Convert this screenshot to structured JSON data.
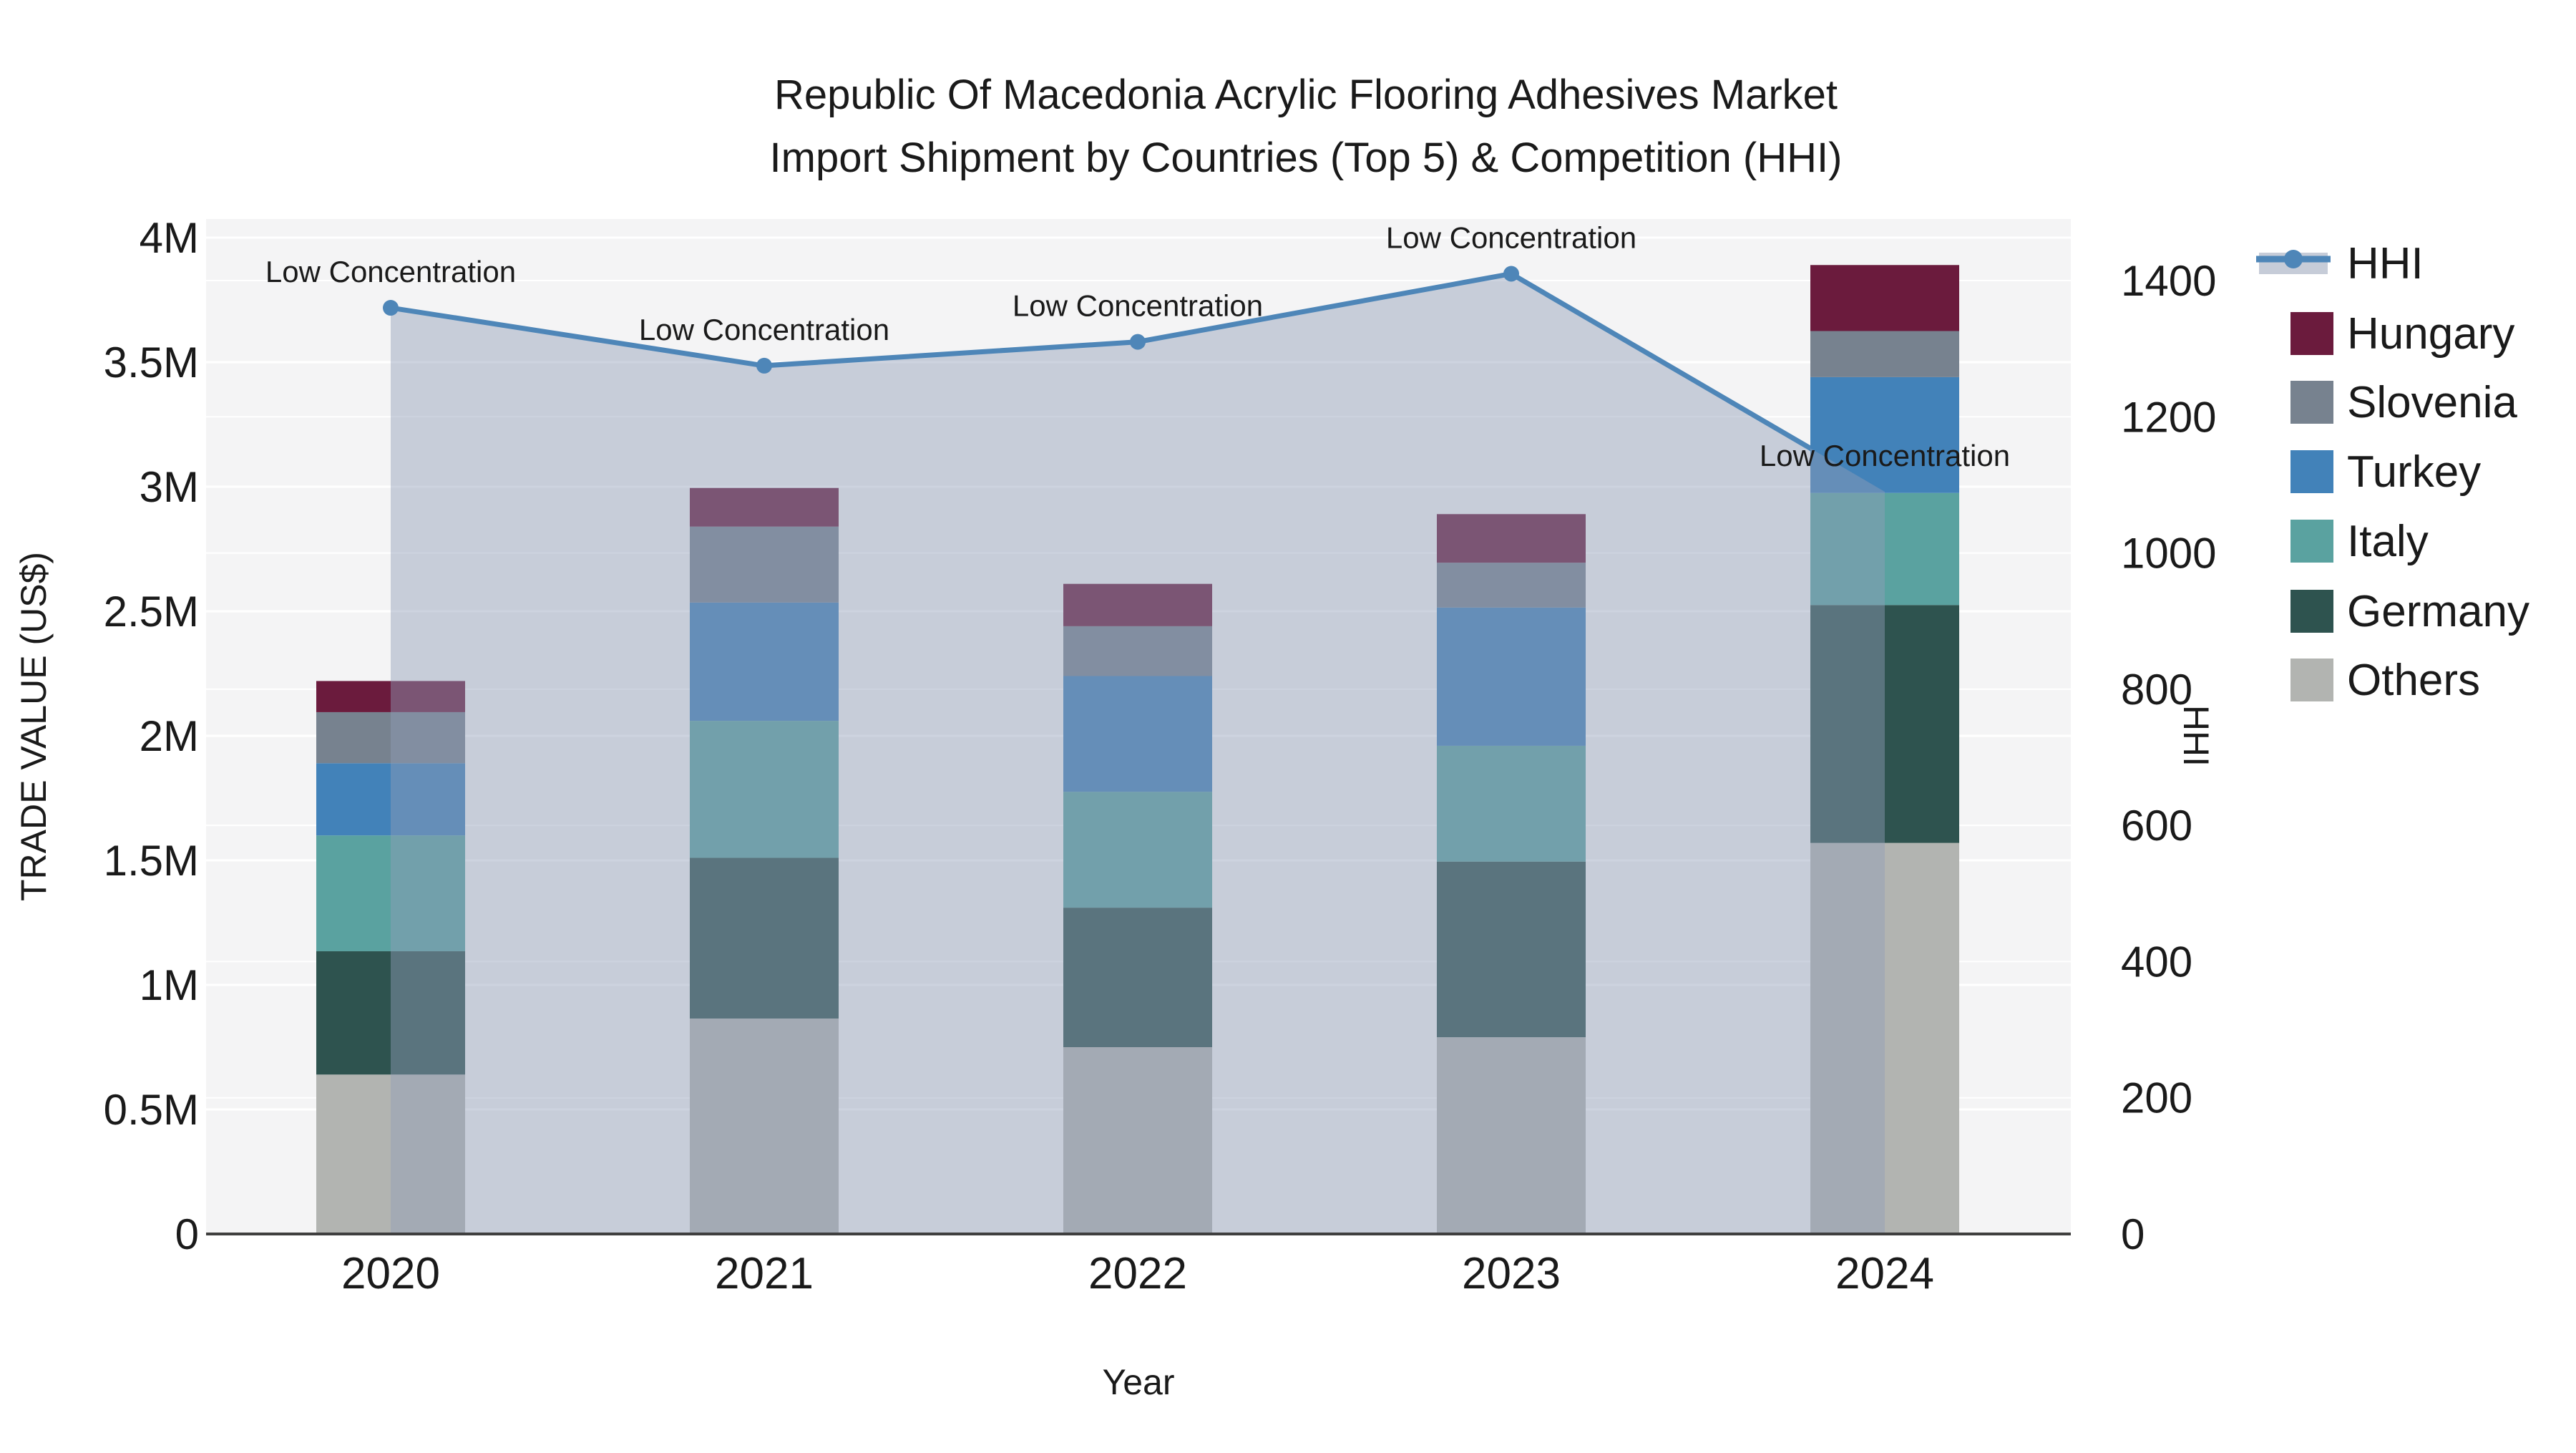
{
  "title": {
    "line1": "Republic Of Macedonia Acrylic Flooring Adhesives Market",
    "line2": "Import Shipment by Countries (Top 5) & Competition (HHI)"
  },
  "axis_titles": {
    "y_left": "TRADE VALUE (US$)",
    "y_right": "HHI",
    "x": "Year"
  },
  "y_left_ticks": [
    "0",
    "0.5M",
    "1M",
    "1.5M",
    "2M",
    "2.5M",
    "3M",
    "3.5M",
    "4M"
  ],
  "y_right_ticks": [
    "0",
    "200",
    "400",
    "600",
    "800",
    "1000",
    "1200",
    "1400"
  ],
  "legend": [
    {
      "label": "HHI",
      "type": "line",
      "color": "#4E86B8",
      "band": "#C6CCD8"
    },
    {
      "label": "Hungary",
      "type": "swatch",
      "color": "#6B1B3D"
    },
    {
      "label": "Slovenia",
      "type": "swatch",
      "color": "#77828F"
    },
    {
      "label": "Turkey",
      "type": "swatch",
      "color": "#4282B9"
    },
    {
      "label": "Italy",
      "type": "swatch",
      "color": "#5AA2A0"
    },
    {
      "label": "Germany",
      "type": "swatch",
      "color": "#2E534F"
    },
    {
      "label": "Others",
      "type": "swatch",
      "color": "#B2B4B1"
    }
  ],
  "chart_data": {
    "type": [
      "bar",
      "line"
    ],
    "bar_mode": "stacked",
    "title": "Republic Of Macedonia Acrylic Flooring Adhesives Market Import Shipment by Countries (Top 5) & Competition (HHI)",
    "xlabel": "Year",
    "categories": [
      "2020",
      "2021",
      "2022",
      "2023",
      "2024"
    ],
    "bar_axis": {
      "label": "TRADE VALUE (US$)",
      "range": [
        0,
        4000000
      ],
      "tick_step": 500000
    },
    "line_axis": {
      "label": "HHI",
      "range": [
        0,
        1400
      ],
      "tick_step": 200
    },
    "bar_series": [
      {
        "name": "Others",
        "color": "#B2B4B1",
        "values": [
          640000,
          865000,
          750000,
          790000,
          1570000
        ]
      },
      {
        "name": "Germany",
        "color": "#2E534F",
        "values": [
          495000,
          645000,
          560000,
          705000,
          955000
        ]
      },
      {
        "name": "Italy",
        "color": "#5AA2A0",
        "values": [
          465000,
          550000,
          465000,
          465000,
          450000
        ]
      },
      {
        "name": "Turkey",
        "color": "#4282B9",
        "values": [
          290000,
          475000,
          465000,
          555000,
          465000
        ]
      },
      {
        "name": "Slovenia",
        "color": "#77828F",
        "values": [
          205000,
          305000,
          200000,
          180000,
          185000
        ]
      },
      {
        "name": "Hungary",
        "color": "#6B1B3D",
        "values": [
          125000,
          155000,
          170000,
          195000,
          265000
        ]
      }
    ],
    "line_series": {
      "name": "HHI",
      "color": "#4E86B8",
      "area_fill": "rgba(144,158,183,0.45)",
      "values": [
        1360,
        1275,
        1310,
        1410,
        1090
      ]
    },
    "annotations": [
      "Low Concentration",
      "Low Concentration",
      "Low Concentration",
      "Low Concentration",
      "Low Concentration"
    ],
    "grid": true,
    "legend_position": "right"
  }
}
